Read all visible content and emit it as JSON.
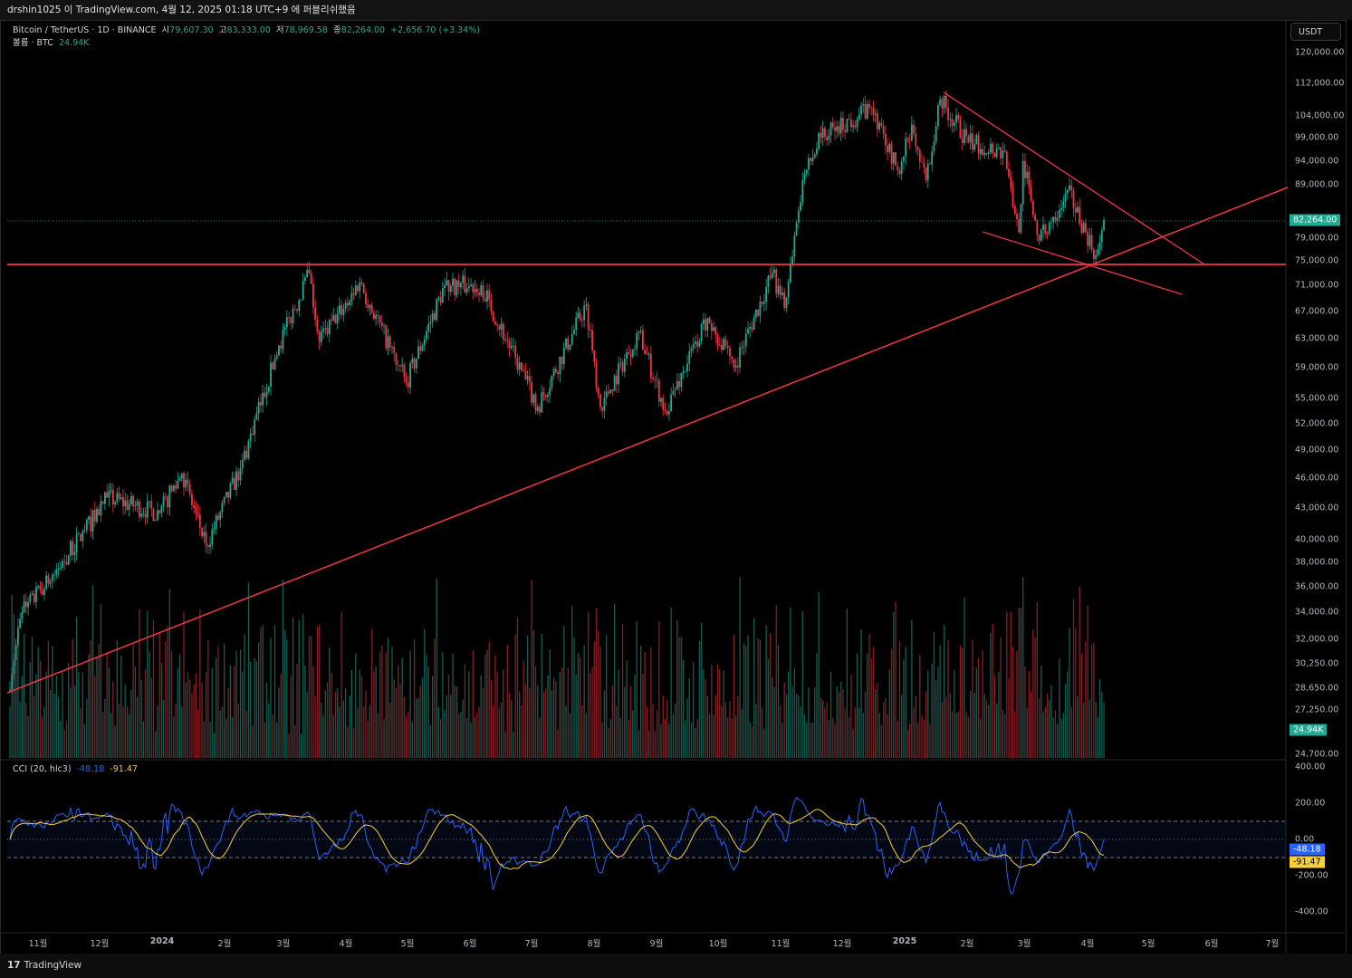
{
  "header": {
    "published_text": "drshin1025 이 TradingView.com, 4월 12, 2025 01:18 UTC+9 에 퍼블리쉬했음"
  },
  "legend": {
    "symbol": "Bitcoin / TetherUS · 1D · BINANCE",
    "open_label": "시",
    "open": "79,607.30",
    "high_label": "고",
    "high": "83,333.00",
    "low_label": "저",
    "low": "78,969.58",
    "close_label": "종",
    "close": "82,264.00",
    "change": "+2,656.70 (+3.34%)",
    "volume_label": "볼륨 · BTC",
    "volume": "24.94K"
  },
  "price_axis": {
    "currency": "USDT",
    "labels": [
      "120,000.00",
      "112,000.00",
      "104,000.00",
      "99,000.00",
      "94,000.00",
      "89,000.00",
      "79,000.00",
      "75,000.00",
      "71,000.00",
      "67,000.00",
      "63,000.00",
      "59,000.00",
      "55,000.00",
      "52,000.00",
      "49,000.00",
      "46,000.00",
      "43,000.00",
      "40,000.00",
      "38,000.00",
      "36,000.00",
      "34,000.00",
      "32,000.00",
      "30,250.00",
      "28,650.00",
      "27,250.00",
      "24,700.00"
    ],
    "last_price": "82,264.00",
    "last_volume": "24.94K"
  },
  "cci": {
    "title": "CCI (20, hlc3)",
    "value": "-48.18",
    "ma_value": "-91.47",
    "axis_labels": [
      "400.00",
      "200.00",
      "0.00",
      "-200.00",
      "-400.00"
    ]
  },
  "time_axis": [
    "11월",
    "12월",
    "2024",
    "2월",
    "3월",
    "4월",
    "5월",
    "6월",
    "7월",
    "8월",
    "9월",
    "10월",
    "11월",
    "12월",
    "2025",
    "2월",
    "3월",
    "4월",
    "5월",
    "6월",
    "7월"
  ],
  "colors": {
    "up": "#22ab94",
    "down": "#f23645",
    "trendline": "#f23645",
    "cci": "#2962ff",
    "cci_ma": "#f7d13c"
  },
  "footer": {
    "brand": "TradingView"
  },
  "chart_data": {
    "type": "candlestick",
    "scale": "log",
    "start_date": "2023-10-17",
    "anchors_days_from_oct1_2023_and_price": [
      [
        16,
        28500
      ],
      [
        23,
        34000
      ],
      [
        39,
        37000
      ],
      [
        65,
        44000
      ],
      [
        91,
        42500
      ],
      [
        102,
        46500
      ],
      [
        114,
        39500
      ],
      [
        131,
        47000
      ],
      [
        150,
        62000
      ],
      [
        165,
        73000
      ],
      [
        170,
        62500
      ],
      [
        190,
        71500
      ],
      [
        213,
        57000
      ],
      [
        232,
        71000
      ],
      [
        250,
        71000
      ],
      [
        278,
        54000
      ],
      [
        302,
        68000
      ],
      [
        309,
        54000
      ],
      [
        328,
        64000
      ],
      [
        341,
        53500
      ],
      [
        362,
        66000
      ],
      [
        375,
        59000
      ],
      [
        394,
        73000
      ],
      [
        400,
        67500
      ],
      [
        409,
        90000
      ],
      [
        418,
        99000
      ],
      [
        443,
        106000
      ],
      [
        456,
        92000
      ],
      [
        463,
        102000
      ],
      [
        470,
        90000
      ],
      [
        477,
        108000
      ],
      [
        491,
        98000
      ],
      [
        509,
        96000
      ],
      [
        516,
        80000
      ],
      [
        518,
        94000
      ],
      [
        526,
        78500
      ],
      [
        540,
        88000
      ],
      [
        554,
        76000
      ],
      [
        558,
        82264
      ]
    ]
  }
}
